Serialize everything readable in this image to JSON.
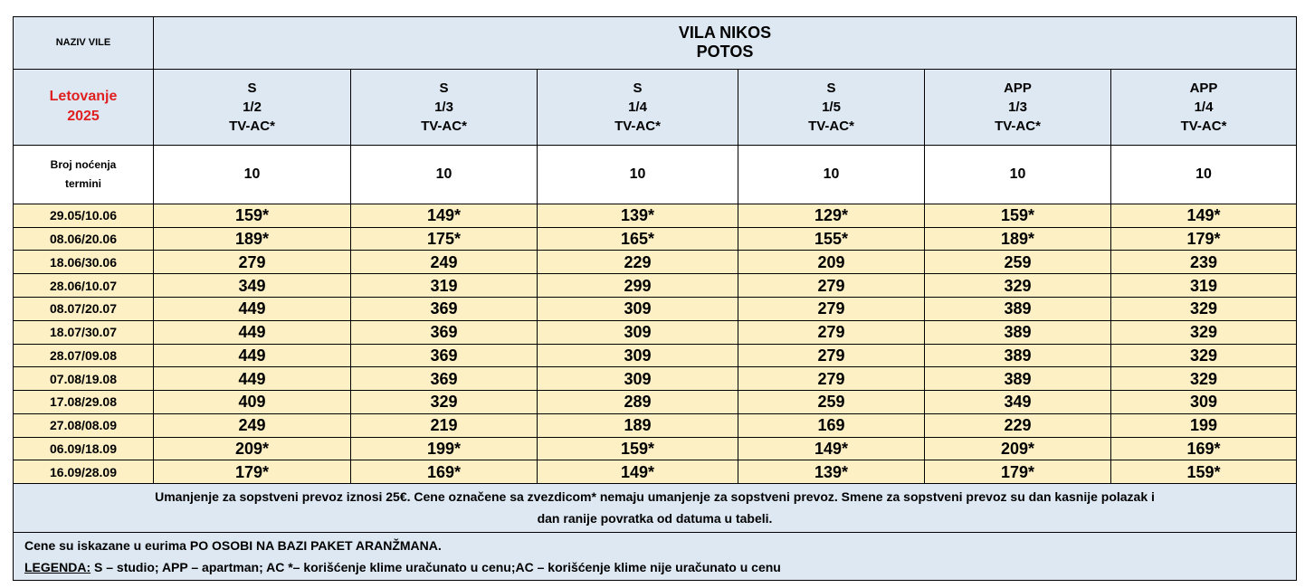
{
  "header": {
    "villa_label": "NAZIV VILE",
    "villa_name": "VILA NIKOS",
    "location": "POTOS",
    "season_line1": "Letovanje",
    "season_line2": "2025",
    "nights_label_line1": "Broj noćenja",
    "nights_label_line2": "termini"
  },
  "columns": [
    {
      "type": "S",
      "capacity": "1/2",
      "equipment": "TV-AC*",
      "nights": "10"
    },
    {
      "type": "S",
      "capacity": "1/3",
      "equipment": "TV-AC*",
      "nights": "10"
    },
    {
      "type": "S",
      "capacity": "1/4",
      "equipment": "TV-AC*",
      "nights": "10"
    },
    {
      "type": "S",
      "capacity": "1/5",
      "equipment": "TV-AC*",
      "nights": "10"
    },
    {
      "type": "APP",
      "capacity": "1/3",
      "equipment": "TV-AC*",
      "nights": "10"
    },
    {
      "type": "APP",
      "capacity": "1/4",
      "equipment": "TV-AC*",
      "nights": "10"
    }
  ],
  "rows": [
    {
      "term": "29.05/10.06",
      "prices": [
        "159*",
        "149*",
        "139*",
        "129*",
        "159*",
        "149*"
      ]
    },
    {
      "term": "08.06/20.06",
      "prices": [
        "189*",
        "175*",
        "165*",
        "155*",
        "189*",
        "179*"
      ]
    },
    {
      "term": "18.06/30.06",
      "prices": [
        "279",
        "249",
        "229",
        "209",
        "259",
        "239"
      ]
    },
    {
      "term": "28.06/10.07",
      "prices": [
        "349",
        "319",
        "299",
        "279",
        "329",
        "319"
      ]
    },
    {
      "term": "08.07/20.07",
      "prices": [
        "449",
        "369",
        "309",
        "279",
        "389",
        "329"
      ]
    },
    {
      "term": "18.07/30.07",
      "prices": [
        "449",
        "369",
        "309",
        "279",
        "389",
        "329"
      ]
    },
    {
      "term": "28.07/09.08",
      "prices": [
        "449",
        "369",
        "309",
        "279",
        "389",
        "329"
      ]
    },
    {
      "term": "07.08/19.08",
      "prices": [
        "449",
        "369",
        "309",
        "279",
        "389",
        "329"
      ]
    },
    {
      "term": "17.08/29.08",
      "prices": [
        "409",
        "329",
        "289",
        "259",
        "349",
        "309"
      ]
    },
    {
      "term": "27.08/08.09",
      "prices": [
        "249",
        "219",
        "189",
        "169",
        "229",
        "199"
      ]
    },
    {
      "term": "06.09/18.09",
      "prices": [
        "209*",
        "199*",
        "159*",
        "149*",
        "209*",
        "169*"
      ]
    },
    {
      "term": "16.09/28.09",
      "prices": [
        "179*",
        "169*",
        "149*",
        "139*",
        "179*",
        "159*"
      ]
    }
  ],
  "notes": {
    "transport_line1": "Umanjenje za sopstveni prevoz iznosi 25€. Cene označene sa zvezdicom* nemaju umanjenje za sopstveni prevoz. Smene za sopstveni prevoz su dan kasnije polazak  i",
    "transport_line2": "dan ranije povratka od datuma u tabeli.",
    "prices_note": "Cene su iskazane u eurima PO OSOBI NA BAZI PAKET ARANŽMANA.",
    "legend_label": "LEGENDA:",
    "legend_text": " S – studio; APP – apartman;   AC *– korišćenje klime uračunato u cenu;AC – korišćenje klime nije uračunato u cenu"
  },
  "colors": {
    "header_bg": "#dde8f3",
    "price_bg": "#fdf0c4",
    "season_text": "#e02020"
  }
}
